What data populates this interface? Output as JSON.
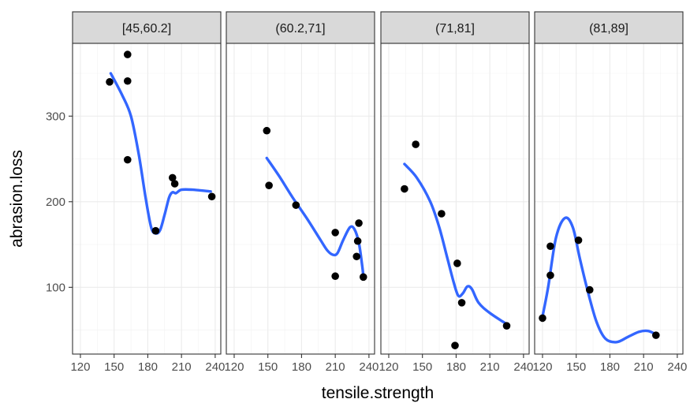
{
  "chart_data": {
    "type": "scatter",
    "facet_by": "hardness",
    "xlabel": "tensile.strength",
    "ylabel": "abrasion.loss",
    "xlim": [
      113,
      245
    ],
    "ylim": [
      22,
      385
    ],
    "x_ticks": [
      120,
      150,
      180,
      210,
      240
    ],
    "y_ticks": [
      100,
      200,
      300
    ],
    "grid": true,
    "colors": {
      "points": "#000000",
      "smooth": "#3366ff",
      "strip": "#d9d9d9"
    },
    "panels": [
      {
        "label": "[45,60.2]",
        "points": [
          [
            146,
            340
          ],
          [
            162,
            372
          ],
          [
            162,
            341
          ],
          [
            162,
            249
          ],
          [
            187,
            166
          ],
          [
            202,
            228
          ],
          [
            204,
            221
          ],
          [
            237,
            206
          ]
        ],
        "smooth": [
          [
            147,
            350
          ],
          [
            157,
            325
          ],
          [
            165,
            300
          ],
          [
            172,
            255
          ],
          [
            178,
            205
          ],
          [
            183,
            170
          ],
          [
            187,
            163
          ],
          [
            191,
            167
          ],
          [
            195,
            185
          ],
          [
            199,
            205
          ],
          [
            202,
            211
          ],
          [
            205,
            210
          ],
          [
            210,
            214
          ],
          [
            220,
            214
          ],
          [
            236,
            212
          ]
        ]
      },
      {
        "label": "(60.2,71]",
        "points": [
          [
            149,
            283
          ],
          [
            151,
            219
          ],
          [
            175,
            196
          ],
          [
            210,
            164
          ],
          [
            210,
            113
          ],
          [
            229,
            136
          ],
          [
            230,
            154
          ],
          [
            231,
            175
          ],
          [
            235,
            112
          ]
        ],
        "smooth": [
          [
            149,
            251
          ],
          [
            160,
            230
          ],
          [
            172,
            205
          ],
          [
            185,
            180
          ],
          [
            197,
            155
          ],
          [
            203,
            143
          ],
          [
            208,
            138
          ],
          [
            212,
            140
          ],
          [
            217,
            155
          ],
          [
            223,
            170
          ],
          [
            227,
            168
          ],
          [
            231,
            152
          ],
          [
            234,
            125
          ],
          [
            235,
            113
          ]
        ]
      },
      {
        "label": "(71,81]",
        "points": [
          [
            134,
            215
          ],
          [
            144,
            267
          ],
          [
            167,
            186
          ],
          [
            181,
            128
          ],
          [
            185,
            82
          ],
          [
            179,
            32
          ],
          [
            225,
            55
          ]
        ],
        "smooth": [
          [
            134,
            244
          ],
          [
            145,
            228
          ],
          [
            157,
            200
          ],
          [
            165,
            170
          ],
          [
            172,
            135
          ],
          [
            178,
            105
          ],
          [
            182,
            90
          ],
          [
            186,
            93
          ],
          [
            190,
            101
          ],
          [
            194,
            98
          ],
          [
            200,
            82
          ],
          [
            210,
            70
          ],
          [
            225,
            57
          ]
        ]
      },
      {
        "label": "(81,89]",
        "points": [
          [
            120,
            64
          ],
          [
            127,
            148
          ],
          [
            127,
            114
          ],
          [
            152,
            155
          ],
          [
            162,
            97
          ],
          [
            221,
            44
          ]
        ],
        "smooth": [
          [
            120,
            66
          ],
          [
            125,
            100
          ],
          [
            132,
            158
          ],
          [
            140,
            181
          ],
          [
            147,
            170
          ],
          [
            153,
            135
          ],
          [
            160,
            97
          ],
          [
            168,
            60
          ],
          [
            176,
            40
          ],
          [
            186,
            36
          ],
          [
            196,
            42
          ],
          [
            206,
            48
          ],
          [
            214,
            49
          ],
          [
            221,
            45
          ]
        ]
      }
    ]
  }
}
